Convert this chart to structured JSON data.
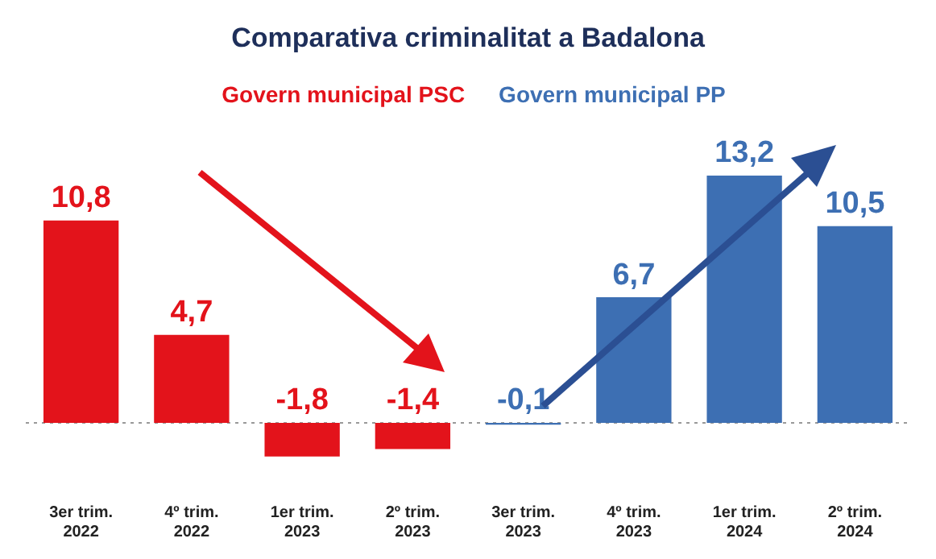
{
  "chart_data": {
    "type": "bar",
    "title": "Comparativa criminalitat a Badalona",
    "categories": [
      "3er trim.\n2022",
      "4º trim.\n2022",
      "1er trim.\n2023",
      "2º trim.\n2023",
      "3er trim.\n2023",
      "4º trim.\n2023",
      "1er trim.\n2024",
      "2º trim.\n2024"
    ],
    "series": [
      {
        "name": "Govern municipal PSC",
        "color": "#e3131b",
        "values": [
          10.8,
          4.7,
          -1.8,
          -1.4,
          null,
          null,
          null,
          null
        ],
        "value_labels": [
          "10,8",
          "4,7",
          "-1,8",
          "-1,4",
          null,
          null,
          null,
          null
        ]
      },
      {
        "name": "Govern municipal PP",
        "color": "#3d6fb3",
        "values": [
          null,
          null,
          null,
          null,
          -0.1,
          6.7,
          13.2,
          10.5
        ],
        "value_labels": [
          null,
          null,
          null,
          null,
          "-0,1",
          "6,7",
          "13,2",
          "10,5"
        ]
      }
    ],
    "legend": "top",
    "grid": false,
    "tick_labels": "x",
    "ref_lines": [
      {
        "axis": "y",
        "value": 0,
        "color": "#999999",
        "line_style": "dotted"
      }
    ]
  }
}
